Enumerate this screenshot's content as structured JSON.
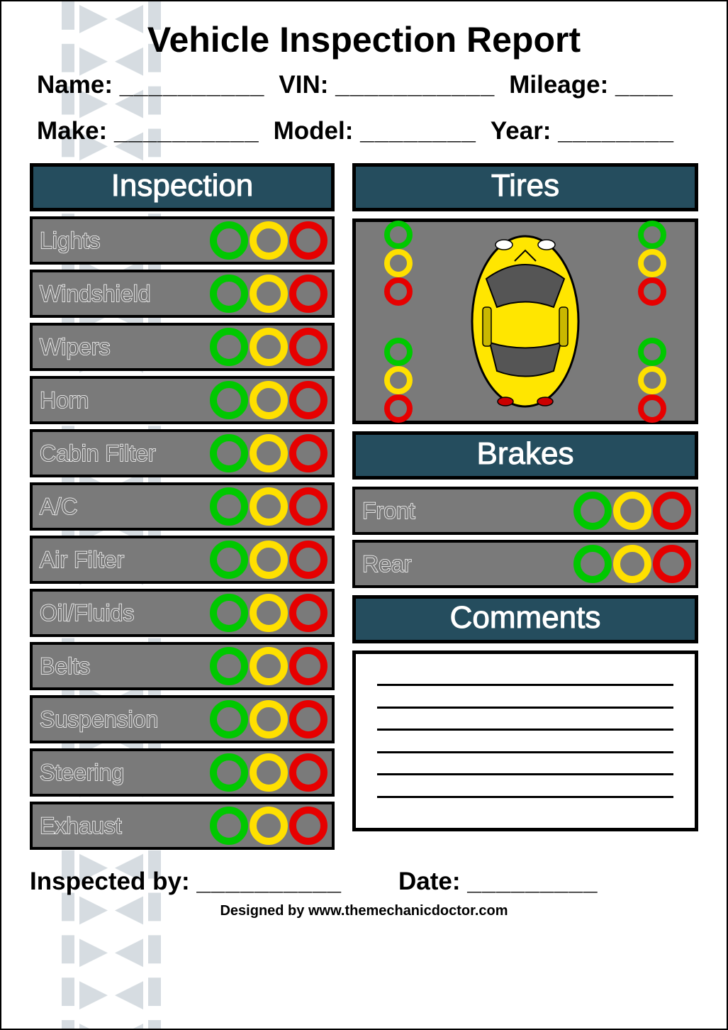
{
  "title": "Vehicle Inspection Report",
  "fields": {
    "name": {
      "label": "Name:",
      "blank": "__________"
    },
    "vin": {
      "label": "VIN:",
      "blank": "___________"
    },
    "mileage": {
      "label": "Mileage:",
      "blank": "____"
    },
    "make": {
      "label": "Make:",
      "blank": "__________"
    },
    "model": {
      "label": "Model:",
      "blank": "________"
    },
    "year": {
      "label": "Year:",
      "blank": "________"
    }
  },
  "sections": {
    "inspection": "Inspection",
    "tires": "Tires",
    "brakes": "Brakes",
    "comments": "Comments"
  },
  "inspection_items": [
    "Lights",
    "Windshield",
    "Wipers",
    "Horn",
    "Cabin Filter",
    "A/C",
    "Air Filter",
    "Oil/Fluids",
    "Belts",
    "Suspension",
    "Steering",
    "Exhaust"
  ],
  "brake_items": [
    "Front",
    "Rear"
  ],
  "status_colors": {
    "good": "#00c800",
    "warn": "#ffe000",
    "bad": "#e60000"
  },
  "panel": {
    "header_bg": "#254d5e",
    "row_bg": "#7a7a7a",
    "border": "#000000",
    "text_outline": "#ffffff"
  },
  "car": {
    "body_color": "#ffe600",
    "glass_color": "#666666",
    "outline": "#000000"
  },
  "footer": {
    "inspected_by": {
      "label": "Inspected by:",
      "blank": "__________"
    },
    "date": {
      "label": "Date:",
      "blank": "_________"
    }
  },
  "credit": "Designed by www.themechanicdoctor.com",
  "comment_lines": 6
}
